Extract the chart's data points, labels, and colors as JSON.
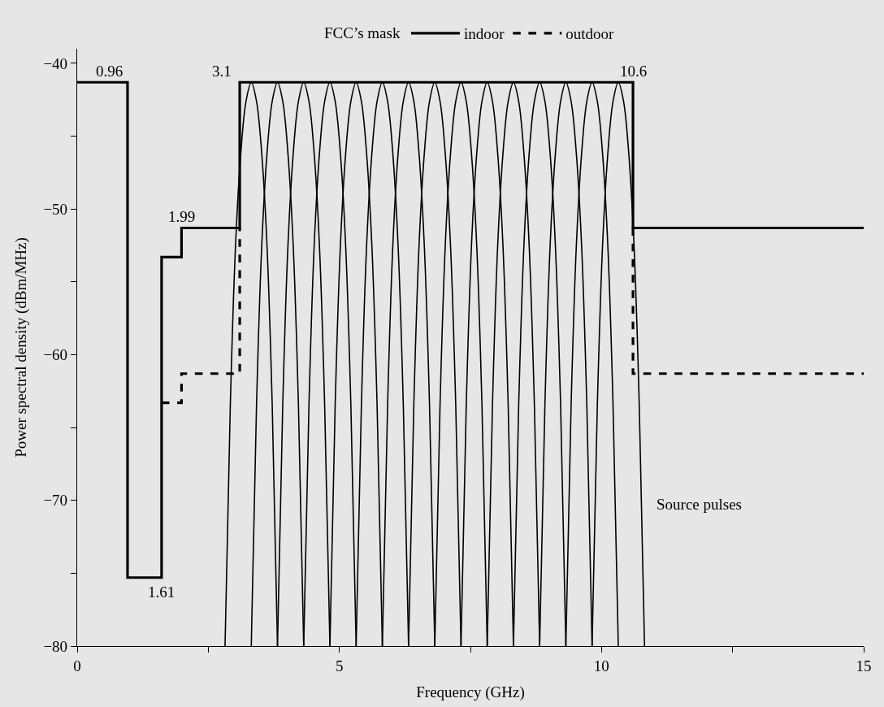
{
  "chart_data": {
    "type": "line",
    "xlabel": "Frequency (GHz)",
    "ylabel": "Power spectral density (dBm/MHz)",
    "legend_title": "FCC’s mask",
    "legend": "top",
    "grid": false,
    "marker": "none",
    "xlim": [
      0,
      15
    ],
    "xticks": [
      0,
      {
        "value": 2.5,
        "label": null
      },
      5,
      {
        "value": 7.5,
        "label": null
      },
      10,
      {
        "value": 12.5,
        "label": null
      },
      15
    ],
    "ylim": [
      -80,
      -39
    ],
    "yticks": [
      -80,
      {
        "value": -75,
        "label": null
      },
      -70,
      {
        "value": -65,
        "label": null
      },
      -60,
      {
        "value": -55,
        "label": null
      },
      -50,
      {
        "value": -45,
        "label": null
      },
      -40
    ],
    "annotations": [
      {
        "text": "0.96",
        "x": 0.96,
        "y": -41.3
      },
      {
        "text": "1.61",
        "x": 1.61,
        "y": -75.3
      },
      {
        "text": "1.99",
        "x": 1.99,
        "y": -51.3
      },
      {
        "text": "3.1",
        "x": 3.1,
        "y": -41.3
      },
      {
        "text": "10.6",
        "x": 10.6,
        "y": -41.3
      },
      "Source pulses"
    ],
    "series": [
      {
        "x": [
          2.82,
          2.92,
          3.02,
          3.12,
          3.22,
          3.32,
          3.42,
          3.52,
          3.62,
          3.72,
          3.82
        ],
        "values": [
          -80,
          -63.5,
          -52.5,
          -46.2,
          -42.6,
          -41.3,
          -42.6,
          -46.2,
          -52.5,
          -63.5,
          -80
        ],
        "color": "#000000",
        "line_style": "solid"
      },
      {
        "x": [
          3.32,
          3.42,
          3.52,
          3.62,
          3.72,
          3.82,
          3.92,
          4.02,
          4.12,
          4.22,
          4.32
        ],
        "values": [
          -80,
          -63.5,
          -52.5,
          -46.2,
          -42.6,
          -41.3,
          -42.6,
          -46.2,
          -52.5,
          -63.5,
          -80
        ],
        "color": "#000000",
        "line_style": "solid"
      },
      {
        "x": [
          3.82,
          3.92,
          4.02,
          4.12,
          4.22,
          4.32,
          4.42,
          4.52,
          4.62,
          4.72,
          4.82
        ],
        "values": [
          -80,
          -63.5,
          -52.5,
          -46.2,
          -42.6,
          -41.3,
          -42.6,
          -46.2,
          -52.5,
          -63.5,
          -80
        ],
        "color": "#000000",
        "line_style": "solid"
      },
      {
        "x": [
          4.32,
          4.42,
          4.52,
          4.62,
          4.72,
          4.82,
          4.92,
          5.02,
          5.12,
          5.22,
          5.32
        ],
        "values": [
          -80,
          -63.5,
          -52.5,
          -46.2,
          -42.6,
          -41.3,
          -42.6,
          -46.2,
          -52.5,
          -63.5,
          -80
        ],
        "color": "#000000",
        "line_style": "solid"
      },
      {
        "x": [
          4.82,
          4.92,
          5.02,
          5.12,
          5.22,
          5.32,
          5.42,
          5.52,
          5.62,
          5.72,
          5.82
        ],
        "values": [
          -80,
          -63.5,
          -52.5,
          -46.2,
          -42.6,
          -41.3,
          -42.6,
          -46.2,
          -52.5,
          -63.5,
          -80
        ],
        "color": "#000000",
        "line_style": "solid"
      },
      {
        "x": [
          5.32,
          5.42,
          5.52,
          5.62,
          5.72,
          5.82,
          5.92,
          6.02,
          6.12,
          6.22,
          6.32
        ],
        "values": [
          -80,
          -63.5,
          -52.5,
          -46.2,
          -42.6,
          -41.3,
          -42.6,
          -46.2,
          -52.5,
          -63.5,
          -80
        ],
        "color": "#000000",
        "line_style": "solid"
      },
      {
        "x": [
          5.82,
          5.92,
          6.02,
          6.12,
          6.22,
          6.32,
          6.42,
          6.52,
          6.62,
          6.72,
          6.82
        ],
        "values": [
          -80,
          -63.5,
          -52.5,
          -46.2,
          -42.6,
          -41.3,
          -42.6,
          -46.2,
          -52.5,
          -63.5,
          -80
        ],
        "color": "#000000",
        "line_style": "solid"
      },
      {
        "x": [
          6.32,
          6.42,
          6.52,
          6.62,
          6.72,
          6.82,
          6.92,
          7.02,
          7.12,
          7.22,
          7.32
        ],
        "values": [
          -80,
          -63.5,
          -52.5,
          -46.2,
          -42.6,
          -41.3,
          -42.6,
          -46.2,
          -52.5,
          -63.5,
          -80
        ],
        "color": "#000000",
        "line_style": "solid"
      },
      {
        "x": [
          6.82,
          6.92,
          7.02,
          7.12,
          7.22,
          7.32,
          7.42,
          7.52,
          7.62,
          7.72,
          7.82
        ],
        "values": [
          -80,
          -63.5,
          -52.5,
          -46.2,
          -42.6,
          -41.3,
          -42.6,
          -46.2,
          -52.5,
          -63.5,
          -80
        ],
        "color": "#000000",
        "line_style": "solid"
      },
      {
        "x": [
          7.32,
          7.42,
          7.52,
          7.62,
          7.72,
          7.82,
          7.92,
          8.02,
          8.12,
          8.22,
          8.32
        ],
        "values": [
          -80,
          -63.5,
          -52.5,
          -46.2,
          -42.6,
          -41.3,
          -42.6,
          -46.2,
          -52.5,
          -63.5,
          -80
        ],
        "color": "#000000",
        "line_style": "solid"
      },
      {
        "x": [
          7.82,
          7.92,
          8.02,
          8.12,
          8.22,
          8.32,
          8.42,
          8.52,
          8.62,
          8.72,
          8.82
        ],
        "values": [
          -80,
          -63.5,
          -52.5,
          -46.2,
          -42.6,
          -41.3,
          -42.6,
          -46.2,
          -52.5,
          -63.5,
          -80
        ],
        "color": "#000000",
        "line_style": "solid"
      },
      {
        "x": [
          8.32,
          8.42,
          8.52,
          8.62,
          8.72,
          8.82,
          8.92,
          9.02,
          9.12,
          9.22,
          9.32
        ],
        "values": [
          -80,
          -63.5,
          -52.5,
          -46.2,
          -42.6,
          -41.3,
          -42.6,
          -46.2,
          -52.5,
          -63.5,
          -80
        ],
        "color": "#000000",
        "line_style": "solid"
      },
      {
        "x": [
          8.82,
          8.92,
          9.02,
          9.12,
          9.22,
          9.32,
          9.42,
          9.52,
          9.62,
          9.72,
          9.82
        ],
        "values": [
          -80,
          -63.5,
          -52.5,
          -46.2,
          -42.6,
          -41.3,
          -42.6,
          -46.2,
          -52.5,
          -63.5,
          -80
        ],
        "color": "#000000",
        "line_style": "solid"
      },
      {
        "x": [
          9.32,
          9.42,
          9.52,
          9.62,
          9.72,
          9.82,
          9.92,
          10.02,
          10.12,
          10.22,
          10.32
        ],
        "values": [
          -80,
          -63.5,
          -52.5,
          -46.2,
          -42.6,
          -41.3,
          -42.6,
          -46.2,
          -52.5,
          -63.5,
          -80
        ],
        "color": "#000000",
        "line_style": "solid"
      },
      {
        "x": [
          9.82,
          9.92,
          10.02,
          10.12,
          10.22,
          10.32,
          10.42,
          10.52,
          10.62,
          10.72,
          10.82
        ],
        "values": [
          -80,
          -63.5,
          -52.5,
          -46.2,
          -42.6,
          -41.3,
          -42.6,
          -46.2,
          -52.5,
          -63.5,
          -80
        ],
        "color": "#000000",
        "line_style": "solid"
      },
      {
        "name": "indoor",
        "x": [
          0,
          0.96,
          0.96,
          1.61,
          1.61,
          1.99,
          1.99,
          3.1,
          3.1,
          10.6,
          10.6,
          15
        ],
        "values": [
          -41.3,
          -41.3,
          -75.3,
          -75.3,
          -53.3,
          -53.3,
          -51.3,
          -51.3,
          -41.3,
          -41.3,
          -51.3,
          -51.3
        ],
        "color": "#000000",
        "line_style": "solid"
      },
      {
        "name": "outdoor",
        "x": [
          1.61,
          1.99,
          1.99,
          3.1,
          3.1
        ],
        "values": [
          -63.3,
          -63.3,
          -61.3,
          -61.3,
          -51.3
        ],
        "color": "#000000",
        "line_style": "dashed"
      },
      {
        "x": [
          10.6,
          10.6,
          15
        ],
        "values": [
          -51.3,
          -61.3,
          -61.3
        ],
        "color": "#000000",
        "line_style": "dashed"
      }
    ]
  }
}
